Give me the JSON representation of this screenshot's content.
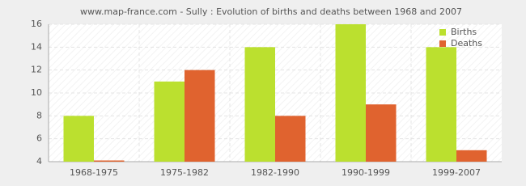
{
  "chart_data": {
    "type": "bar",
    "title": "www.map-france.com - Sully : Evolution of births and deaths between 1968 and 2007",
    "categories": [
      "1968-1975",
      "1975-1982",
      "1982-1990",
      "1990-1999",
      "1999-2007"
    ],
    "series": [
      {
        "name": "Births",
        "color": "#bbe02f",
        "values": [
          8,
          11,
          14,
          16,
          14
        ]
      },
      {
        "name": "Deaths",
        "color": "#e0632f",
        "values": [
          4,
          12,
          8,
          9,
          5
        ]
      }
    ],
    "ylim": [
      4,
      16
    ],
    "yticks": [
      4,
      6,
      8,
      10,
      12,
      14,
      16
    ],
    "grid": true,
    "legend": "top-right"
  }
}
